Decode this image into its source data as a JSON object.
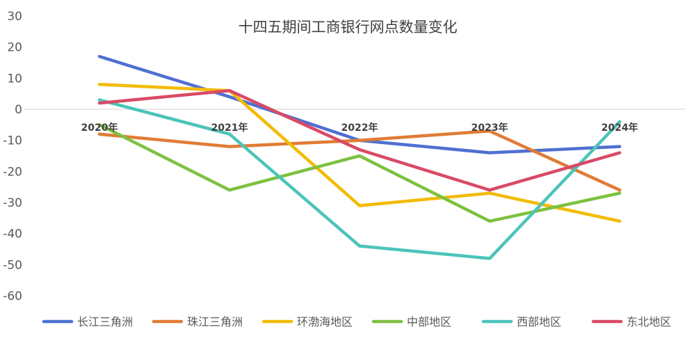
{
  "chart_data": {
    "type": "line",
    "title": "十四五期间工商银行网点数量变化",
    "xlabel": "",
    "ylabel": "",
    "ylim": [
      -60,
      30
    ],
    "yticks": [
      30,
      20,
      10,
      0,
      -10,
      -20,
      -30,
      -40,
      -50,
      -60
    ],
    "grid": false,
    "legend_position": "bottom",
    "categories": [
      "2020年",
      "2021年",
      "2022年",
      "2023年",
      "2024年"
    ],
    "series": [
      {
        "name": "长江三角洲",
        "color": "#4f6fd1",
        "values": [
          17,
          4,
          -10,
          -14,
          -12
        ]
      },
      {
        "name": "珠江三角洲",
        "color": "#e07c35",
        "values": [
          -8,
          -12,
          -10,
          -7,
          -26
        ]
      },
      {
        "name": "环渤海地区",
        "color": "#f2bb06",
        "values": [
          8,
          6,
          -31,
          -27,
          -36
        ]
      },
      {
        "name": "中部地区",
        "color": "#7dc140",
        "values": [
          -5,
          -26,
          -15,
          -36,
          -27
        ]
      },
      {
        "name": "西部地区",
        "color": "#4cc4ba",
        "values": [
          3,
          -8,
          -44,
          -48,
          -4
        ]
      },
      {
        "name": "东北地区",
        "color": "#d94a66",
        "values": [
          2,
          6,
          -13,
          -26,
          -14
        ]
      }
    ]
  }
}
